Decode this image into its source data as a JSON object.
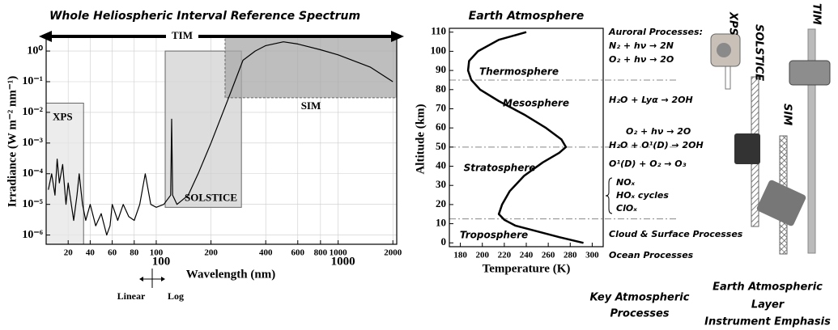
{
  "chart_data": [
    {
      "type": "line",
      "title": "Whole Heliospheric Interval Reference Spectrum",
      "x_label": "Wavelength (nm)",
      "y_label": "Irradiance (W m⁻² nm⁻¹)",
      "x_scale": "linear-log",
      "x_break": 100,
      "y_scale": "log",
      "grid": true,
      "color": "#000000",
      "xlim": [
        0,
        2100
      ],
      "xticks": [
        20,
        40,
        60,
        80,
        100,
        200,
        400,
        600,
        800,
        1000,
        2000
      ],
      "xticks_major": [
        100,
        1000
      ],
      "ylim": [
        5e-07,
        3
      ],
      "yticks": [
        {
          "value": 1,
          "label": "10⁰"
        },
        {
          "value": 0.1,
          "label": "10⁻¹"
        },
        {
          "value": 0.01,
          "label": "10⁻²"
        },
        {
          "value": 0.001,
          "label": "10⁻³"
        },
        {
          "value": 0.0001,
          "label": "10⁻⁴"
        },
        {
          "value": 1e-05,
          "label": "10⁻⁵"
        },
        {
          "value": 1e-06,
          "label": "10⁻⁶"
        }
      ],
      "x": [
        2,
        5,
        8,
        10,
        12,
        15,
        18,
        20,
        25,
        28,
        30,
        33,
        36,
        40,
        45,
        50,
        55,
        58,
        60,
        65,
        70,
        75,
        80,
        85,
        90,
        95,
        100,
        110,
        120,
        121.6,
        123,
        130,
        150,
        170,
        200,
        250,
        300,
        350,
        400,
        500,
        600,
        800,
        1000,
        1500,
        2000
      ],
      "values": [
        3e-05,
        0.0001,
        2e-05,
        0.0003,
        5e-05,
        0.0002,
        1e-05,
        5e-05,
        3e-06,
        2e-05,
        0.0001,
        1e-05,
        3e-06,
        1e-05,
        2e-06,
        5e-06,
        1e-06,
        2e-06,
        1e-05,
        3e-06,
        1e-05,
        4e-06,
        3e-06,
        1e-05,
        0.0001,
        1e-05,
        8e-06,
        1e-05,
        2e-05,
        0.006,
        2e-05,
        1e-05,
        2e-05,
        0.0001,
        0.001,
        0.03,
        0.5,
        1,
        1.5,
        2,
        1.7,
        1.1,
        0.75,
        0.3,
        0.1
      ],
      "regions": [
        {
          "label": "XPS",
          "xlim": [
            0,
            34
          ],
          "ylim": [
            5e-07,
            0.02
          ],
          "color": "#e6e6e6"
        },
        {
          "label": "SOLSTICE",
          "xlim": [
            112,
            294
          ],
          "ylim": [
            8e-06,
            1
          ],
          "color": "#d2d2d2"
        },
        {
          "label": "SIM",
          "xlim": [
            239,
            2100
          ],
          "ylim": [
            0.03,
            3
          ],
          "color": "#a8a8a8"
        }
      ],
      "arrow_label": "TIM",
      "scale_note": [
        "Linear",
        "Log"
      ]
    },
    {
      "type": "line",
      "title": "Earth Atmosphere",
      "x_label": "Temperature (K)",
      "y_label": "Altitude (km)",
      "color": "#000000",
      "xlim": [
        170,
        310
      ],
      "xticks": [
        180,
        200,
        220,
        240,
        260,
        280,
        300
      ],
      "ylim": [
        -2,
        112
      ],
      "yticks": [
        0,
        10,
        20,
        30,
        40,
        50,
        60,
        70,
        80,
        90,
        100,
        110
      ],
      "x": [
        292,
        270,
        250,
        230,
        220,
        215,
        218,
        225,
        238,
        255,
        270,
        276,
        272,
        258,
        238,
        215,
        198,
        190,
        187,
        188,
        196,
        215,
        240
      ],
      "values": [
        0,
        3,
        6,
        9,
        12,
        15,
        20,
        27,
        35,
        42,
        47,
        50,
        54,
        60,
        67,
        74,
        80,
        85,
        90,
        95,
        100,
        106,
        110
      ],
      "boundaries": [
        12.5,
        50,
        85
      ],
      "layers": [
        "Thermosphere",
        "Mesosphere",
        "Stratosphere",
        "Troposphere"
      ]
    }
  ],
  "processes": {
    "caption": [
      "Key Atmospheric",
      "Processes"
    ],
    "items": [
      "Auroral Processes:",
      "N₂ + hν → 2N",
      "O₂ + hν → 2O",
      "H₂O + Lyα → 2OH",
      "O₂ + hν → 2O",
      "H₂O + O¹(D) → 2OH",
      "O¹(D) + O₂ → O₃",
      "NOₓ",
      "HOₓ cycles",
      "ClOₓ",
      "Cloud & Surface Processes",
      "Ocean Processes"
    ]
  },
  "instruments": {
    "labels": [
      "XPS",
      "SOLSTICE",
      "SIM",
      "TIM"
    ],
    "caption": [
      "Earth Atmospheric",
      "Layer",
      "Instrument Emphasis"
    ]
  }
}
